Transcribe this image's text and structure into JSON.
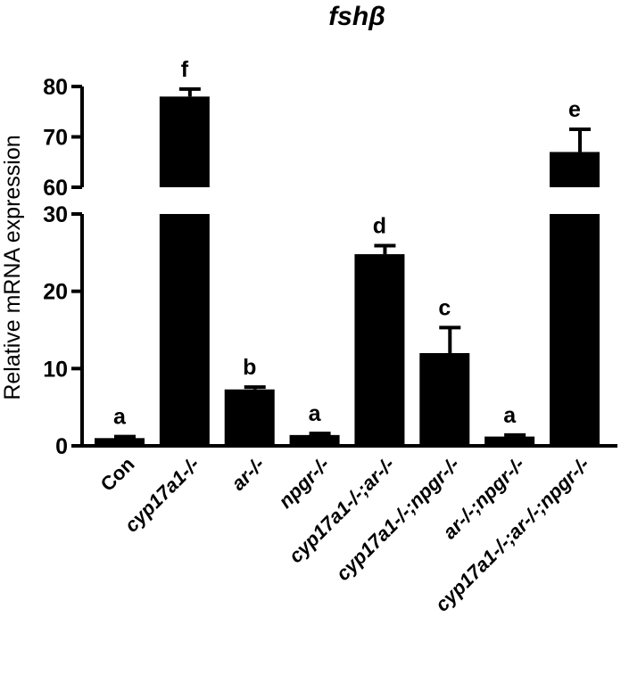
{
  "chart_data": {
    "type": "bar",
    "title": "fshβ",
    "ylabel": "Relative mRNA expression",
    "xlabel": "",
    "axis_break": {
      "lower_range": [
        0,
        30
      ],
      "upper_range": [
        60,
        80
      ]
    },
    "yticks_lower": [
      0,
      10,
      20,
      30
    ],
    "yticks_upper": [
      60,
      70,
      80
    ],
    "categories": [
      "Con",
      "cyp17a1-/-",
      "ar-/-",
      "npgr-/-",
      "cyp17a1-/-;ar-/-",
      "cyp17a1-/-;npgr-/-",
      "ar-/-;npgr-/-",
      "cyp17a1-/-;ar-/-;npgr-/-"
    ],
    "italic_categories": [
      false,
      true,
      true,
      true,
      true,
      true,
      true,
      true
    ],
    "values": [
      1.0,
      78.0,
      7.3,
      1.4,
      24.8,
      12.0,
      1.2,
      67.0
    ],
    "errors": [
      0.2,
      1.5,
      0.3,
      0.2,
      1.1,
      3.3,
      0.2,
      4.5
    ],
    "significance": [
      "a",
      "f",
      "b",
      "a",
      "d",
      "c",
      "a",
      "e"
    ],
    "bar_color": "#000000",
    "grid": false,
    "legend": "none"
  }
}
